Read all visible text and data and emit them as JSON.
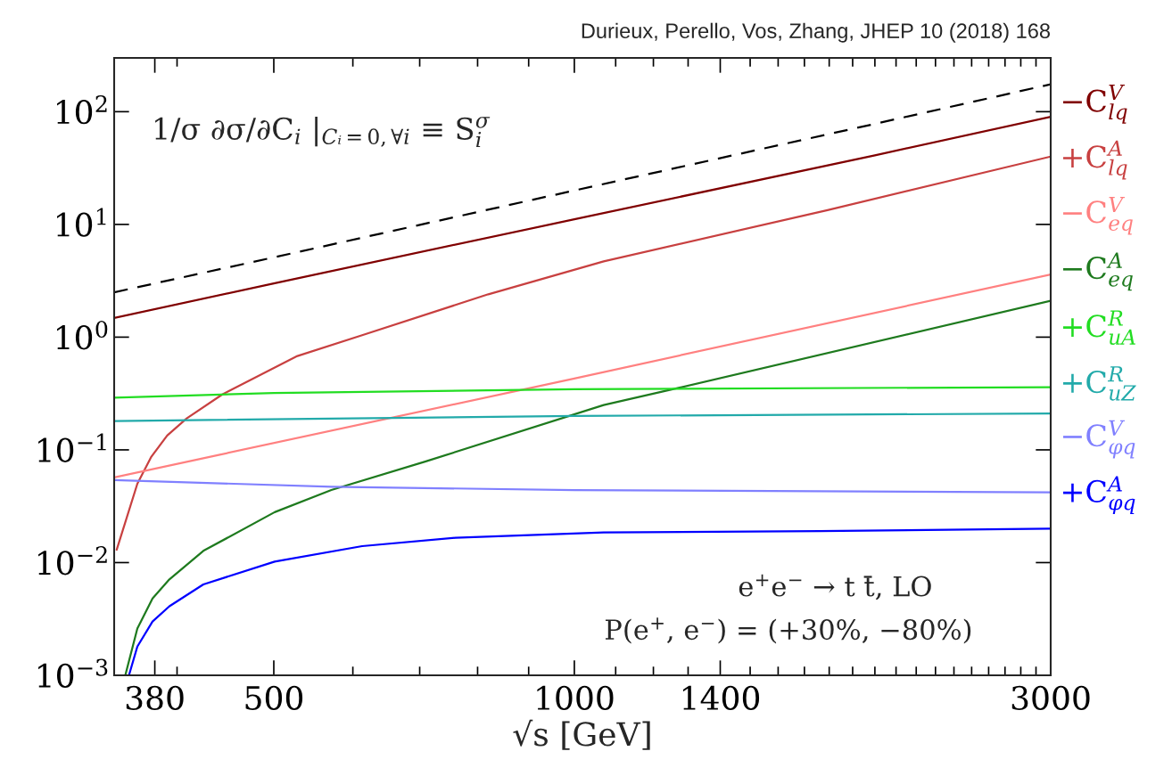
{
  "chart_data": {
    "type": "line",
    "xlabel": "√s [GeV]",
    "log": "xy",
    "grid": false,
    "marker": "none",
    "xlim": [
      346,
      3000
    ],
    "ylim": [
      0.001,
      300
    ],
    "xticks": [
      380,
      {
        "value": 400,
        "label": null
      },
      500,
      {
        "value": 600,
        "label": null
      },
      {
        "value": 700,
        "label": null
      },
      {
        "value": 800,
        "label": null
      },
      {
        "value": 900,
        "label": null
      },
      1000,
      {
        "value": 1100,
        "label": null
      },
      {
        "value": 1200,
        "label": null
      },
      {
        "value": 1300,
        "label": null
      },
      1400,
      {
        "value": 1500,
        "label": null
      },
      {
        "value": 1600,
        "label": null
      },
      {
        "value": 1700,
        "label": null
      },
      {
        "value": 1800,
        "label": null
      },
      {
        "value": 1900,
        "label": null
      },
      {
        "value": 2000,
        "label": null
      },
      {
        "value": 2100,
        "label": null
      },
      {
        "value": 2200,
        "label": null
      },
      {
        "value": 2300,
        "label": null
      },
      {
        "value": 2400,
        "label": null
      },
      {
        "value": 2500,
        "label": null
      },
      {
        "value": 2600,
        "label": null
      },
      {
        "value": 2700,
        "label": null
      },
      {
        "value": 2800,
        "label": null
      },
      {
        "value": 2900,
        "label": null
      },
      3000
    ],
    "yticks": [
      {
        "value": 0.001,
        "label": "10$^{−3}$"
      },
      {
        "value": 0.01,
        "label": "10$^{−2}$"
      },
      {
        "value": 0.1,
        "label": "10$^{−1}$"
      },
      {
        "value": 1,
        "label": "10$^{0}$"
      },
      {
        "value": 10,
        "label": "10$^{1}$"
      },
      {
        "value": 100,
        "label": "10$^{2}$"
      }
    ],
    "annotations": [
      "Durieux, Perello, Vos, Zhang, JHEP 10 (2018) 168",
      "1/σ ∂σ/∂C$_{i}$ |$_{Cᵢ=0,∀i}$ ≡ S$^{σ}$$_{i}$",
      "e$^{+}$e$^{−}$ → t t̄, LO",
      "P(e$^{+}$, e$^{−}$) = (+30%, −80%)"
    ],
    "series": [
      {
        "color": "#000000",
        "line_style": "dashed",
        "x": [
          346,
          500,
          1000,
          2000,
          3000
        ],
        "values": [
          2.5,
          5.1,
          20,
          78,
          175
        ]
      },
      {
        "name": "−C$^{V}$$_{lq}$",
        "color": "#800000",
        "x": [
          346,
          500,
          1000,
          2000,
          3000
        ],
        "values": [
          1.48,
          3.0,
          11.1,
          41,
          90
        ]
      },
      {
        "name": "+C$^{A}$$_{lq}$",
        "color": "#c84040",
        "x": [
          348,
          365,
          377,
          391,
          409,
          444,
          528,
          613,
          820,
          1070,
          1793,
          3000
        ],
        "values": [
          0.013,
          0.05,
          0.087,
          0.134,
          0.19,
          0.31,
          0.68,
          1.04,
          2.4,
          4.7,
          13.4,
          40
        ]
      },
      {
        "name": "−C$^{V}$$_{eq}$",
        "color": "#ff8080",
        "x": [
          346,
          1000,
          3000
        ],
        "values": [
          0.057,
          0.43,
          3.6
        ]
      },
      {
        "name": "−C$^{A}$$_{eq}$",
        "color": "#1e7a1e",
        "x": [
          355,
          365,
          378,
          393,
          425,
          501,
          571,
          710,
          1070,
          1263,
          3000
        ],
        "values": [
          0.001,
          0.0026,
          0.0048,
          0.0071,
          0.0127,
          0.028,
          0.044,
          0.079,
          0.25,
          0.35,
          2.1
        ]
      },
      {
        "name": "+C$^{R}$$_{uA}$",
        "color": "#22dd22",
        "x": [
          346,
          500,
          1000,
          3000
        ],
        "values": [
          0.29,
          0.32,
          0.345,
          0.36
        ]
      },
      {
        "name": "+C$^{R}$$_{uZ}$",
        "color": "#22aaaa",
        "x": [
          346,
          1000,
          3000
        ],
        "values": [
          0.18,
          0.2,
          0.21
        ]
      },
      {
        "name": "−C$^{V}$$_{φq}$",
        "color": "#8080ff",
        "x": [
          346,
          571,
          1000,
          3000
        ],
        "values": [
          0.054,
          0.047,
          0.044,
          0.042
        ]
      },
      {
        "name": "+C$^{A}$$_{φq}$",
        "color": "#0000ff",
        "x": [
          358,
          365,
          378,
          393,
          425,
          501,
          613,
          760,
          1070,
          1760,
          3000
        ],
        "values": [
          0.001,
          0.0018,
          0.003,
          0.0041,
          0.0064,
          0.0102,
          0.014,
          0.0166,
          0.0185,
          0.019,
          0.02
        ]
      }
    ]
  }
}
